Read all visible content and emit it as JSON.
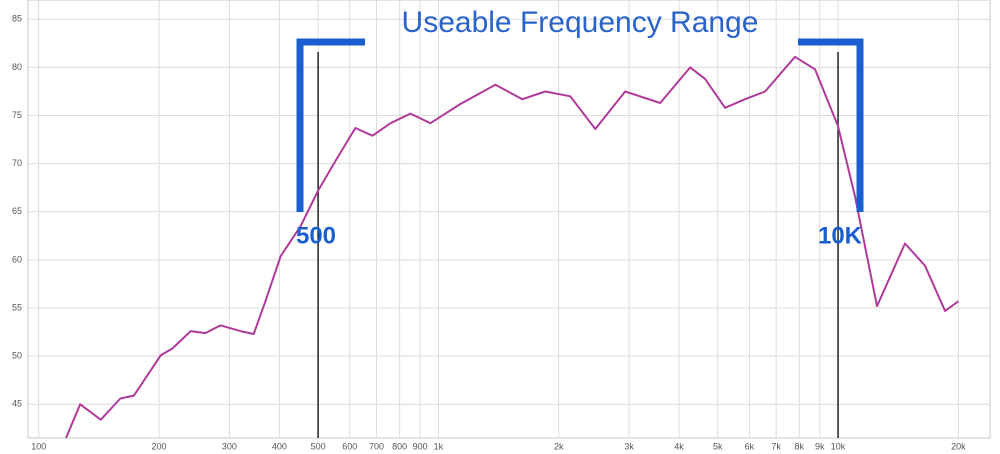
{
  "chart_data": {
    "type": "line",
    "title": "Useable Frequency Range",
    "annotations": [
      "500",
      "10K"
    ],
    "markers": [
      500,
      10000
    ],
    "xscale": "log",
    "grid": true,
    "xlim": [
      94,
      24000
    ],
    "ylim": [
      41.5,
      87
    ],
    "xticks": [
      100,
      200,
      300,
      400,
      500,
      600,
      700,
      800,
      900,
      {
        "value": 1000,
        "label": "1k"
      },
      {
        "value": 2000,
        "label": "2k"
      },
      {
        "value": 3000,
        "label": "3k"
      },
      {
        "value": 4000,
        "label": "4k"
      },
      {
        "value": 5000,
        "label": "5k"
      },
      {
        "value": 6000,
        "label": "6k"
      },
      {
        "value": 7000,
        "label": "7k"
      },
      {
        "value": 8000,
        "label": "8k"
      },
      {
        "value": 9000,
        "label": "9k"
      },
      {
        "value": 10000,
        "label": "10k"
      },
      {
        "value": 20000,
        "label": "20k"
      }
    ],
    "yticks": [
      45,
      50,
      55,
      60,
      65,
      70,
      75,
      80,
      85
    ],
    "series": [
      {
        "color": "#b03a9c",
        "x": [
          117,
          127,
          143,
          160,
          173,
          202,
          216,
          240,
          261,
          285,
          320,
          345,
          369,
          403,
          452,
          500,
          553,
          620,
          684,
          759,
          851,
          955,
          1135,
          1389,
          1622,
          1851,
          2138,
          2469,
          2934,
          3589,
          4266,
          4650,
          5218,
          5854,
          6568,
          7805,
          8758,
          10000,
          11029,
          12516,
          14706,
          16500,
          18514,
          20000
        ],
        "values": [
          41.5,
          45,
          43.4,
          45.6,
          45.9,
          50.1,
          50.8,
          52.6,
          52.4,
          53.2,
          52.6,
          52.3,
          55.7,
          60.4,
          63.5,
          67.2,
          70.3,
          73.7,
          72.9,
          74.2,
          75.2,
          74.2,
          76.2,
          78.2,
          76.7,
          77.5,
          77.0,
          73.6,
          77.5,
          76.3,
          80.0,
          78.8,
          75.8,
          76.7,
          77.5,
          81.1,
          79.8,
          73.9,
          66.6,
          55.2,
          61.7,
          59.4,
          54.7,
          55.7
        ]
      }
    ]
  }
}
